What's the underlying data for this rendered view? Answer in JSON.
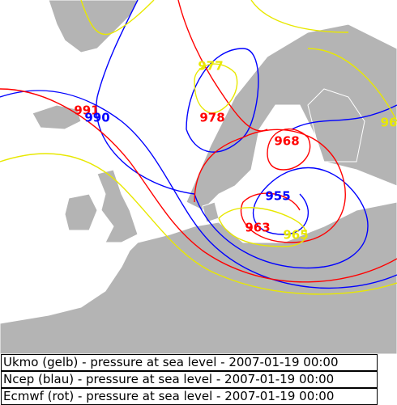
{
  "labels": [
    {
      "text": "977",
      "color": "#e8e800"
    },
    {
      "text": "991",
      "color": "#ff0000"
    },
    {
      "text": "990",
      "color": "#0000ff"
    },
    {
      "text": "978",
      "color": "#ff0000"
    },
    {
      "text": "968",
      "color": "#ff0000"
    },
    {
      "text": "96",
      "color": "#e8e800"
    },
    {
      "text": "955",
      "color": "#0000ff"
    },
    {
      "text": "963",
      "color": "#ff0000"
    },
    {
      "text": "965",
      "color": "#e8e800"
    }
  ],
  "legend": [
    "Ukmo (gelb) - pressure at sea level - 2007-01-19 00:00",
    "Ncep (blau) - pressure at sea level - 2007-01-19 00:00",
    "Ecmwf (rot) - pressure at sea level - 2007-01-19 00:00"
  ]
}
